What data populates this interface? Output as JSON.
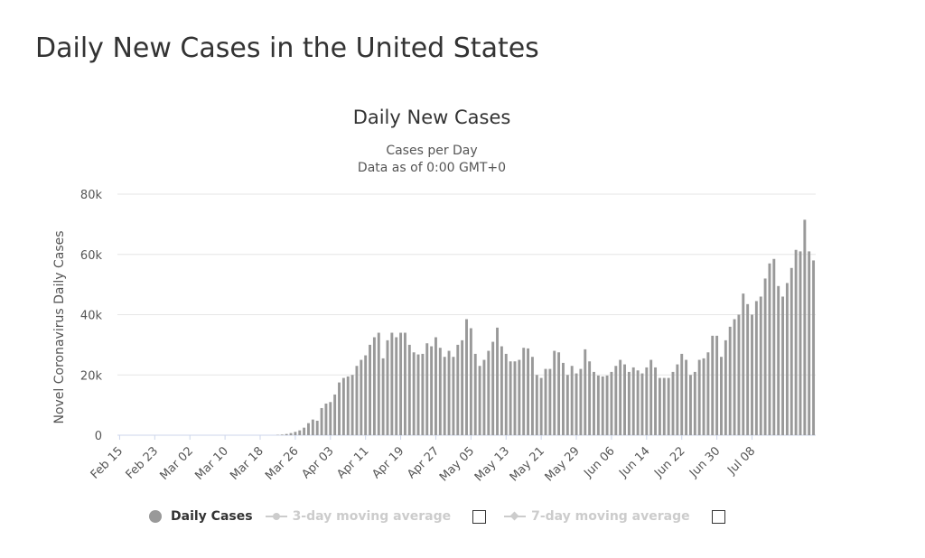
{
  "page": {
    "title": "Daily New Cases in the United States"
  },
  "chart_data": {
    "type": "bar",
    "title": "Daily New Cases",
    "subtitle": [
      "Cases per Day",
      "Data as of 0:00 GMT+0"
    ],
    "ylabel": "Novel Coronavirus Daily Cases",
    "xlabel": "",
    "ylim": [
      0,
      80000
    ],
    "yticks": [
      0,
      20000,
      40000,
      60000,
      80000
    ],
    "ytick_labels": [
      "0",
      "20k",
      "40k",
      "60k",
      "80k"
    ],
    "xtick_labels": [
      "Feb 15",
      "Feb 23",
      "Mar 02",
      "Mar 10",
      "Mar 18",
      "Mar 26",
      "Apr 03",
      "Apr 11",
      "Apr 19",
      "Apr 27",
      "May 05",
      "May 13",
      "May 21",
      "May 29",
      "Jun 06",
      "Jun 14",
      "Jun 22",
      "Jun 30",
      "Jul 08"
    ],
    "grid": true,
    "legend_position": "bottom",
    "bar_color": "#999999",
    "start_category": "Feb 15",
    "series": [
      {
        "name": "Daily Cases",
        "values": [
          0,
          0,
          0,
          0,
          0,
          0,
          0,
          0,
          0,
          0,
          0,
          0,
          0,
          0,
          0,
          0,
          0,
          0,
          0,
          0,
          0,
          0,
          0,
          0,
          0,
          0,
          0,
          0,
          0,
          0,
          0,
          0,
          0,
          0,
          0,
          0,
          100,
          200,
          400,
          700,
          1100,
          1600,
          2500,
          4000,
          5200,
          4800,
          9000,
          10500,
          11000,
          13500,
          17500,
          19000,
          19500,
          20000,
          23000,
          25000,
          26500,
          30000,
          32500,
          34000,
          25500,
          31500,
          34000,
          32500,
          34000,
          34000,
          30000,
          27500,
          26800,
          27000,
          30500,
          29500,
          32500,
          29000,
          26000,
          28000,
          26000,
          30000,
          31500,
          38500,
          35500,
          27000,
          23000,
          25000,
          28000,
          31000,
          35700,
          29500,
          27000,
          24500,
          24500,
          25000,
          29000,
          28800,
          26000,
          20000,
          19000,
          22000,
          22000,
          28000,
          27500,
          24000,
          20000,
          23000,
          20500,
          22000,
          28500,
          24500,
          21000,
          19800,
          19500,
          19800,
          21000,
          23000,
          25000,
          23500,
          21000,
          22500,
          21500,
          20500,
          22500,
          25000,
          22500,
          19000,
          19000,
          19000,
          21000,
          23500,
          27000,
          25000,
          20000,
          21000,
          25000,
          25500,
          27500,
          33000,
          33000,
          26000,
          31500,
          36000,
          38500,
          40000,
          47000,
          43500,
          40000,
          44500,
          46000,
          52000,
          57000,
          58500,
          49500,
          46000,
          50500,
          55500,
          61500,
          61000,
          71500,
          61000,
          58000
        ]
      },
      {
        "name": "3-day moving average",
        "values": []
      },
      {
        "name": "7-day moving average",
        "values": []
      }
    ]
  },
  "legend": {
    "daily": "Daily Cases",
    "ma3": "3-day moving average",
    "ma7": "7-day moving average"
  }
}
